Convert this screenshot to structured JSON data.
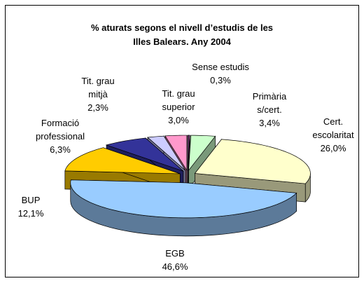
{
  "chart_data": {
    "type": "pie",
    "title": "% aturats segons el nivell d’estudis de les\nIlles Balears. Any 2004",
    "categories": [
      "Sense estudis",
      "Primària\ns/cert.",
      "Cert.\nescolaritat",
      "EGB",
      "BUP",
      "Formació\nprofessional",
      "Tit. grau\nmitjà",
      "Tit. grau\nsuperior"
    ],
    "values": [
      0.3,
      3.4,
      26.0,
      46.6,
      12.1,
      6.3,
      2.3,
      3.0
    ],
    "value_labels": [
      "0,3%",
      "3,4%",
      "26,0%",
      "46,6%",
      "12,1%",
      "6,3%",
      "2,3%",
      "3,0%"
    ],
    "colors": [
      "#663366",
      "#ccffcc",
      "#ffffcc",
      "#99ccff",
      "#ffcc00",
      "#333399",
      "#ccccff",
      "#ff99cc"
    ]
  }
}
